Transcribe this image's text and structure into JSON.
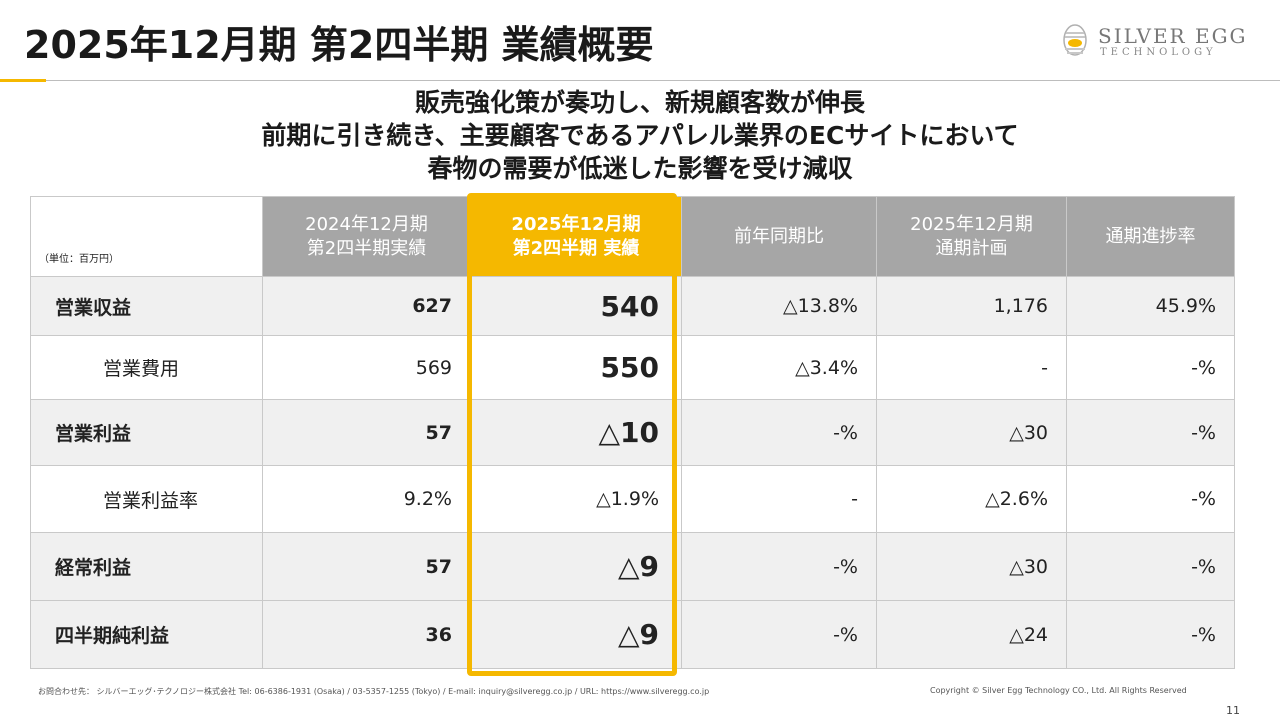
{
  "title": "2025年12月期 第2四半期 業績概要",
  "logo": {
    "main": "SILVER EGG",
    "sub": "TECHNOLOGY"
  },
  "headline": {
    "line1": "販売強化策が奏功し、新規顧客数が伸長",
    "line2": "前期に引き続き、主要顧客であるアパレル業界のECサイトにおいて",
    "line3": "春物の需要が低迷した影響を受け減収"
  },
  "table": {
    "unit": "（単位：百万円）",
    "headers": {
      "prev": [
        "2024年12月期",
        "第2四半期実績"
      ],
      "current": [
        "2025年12月期",
        "第2四半期 実績"
      ],
      "yoy": "前年同期比",
      "plan": [
        "2025年12月期",
        "通期計画"
      ],
      "progress": "通期進捗率"
    },
    "rows": [
      {
        "label": "営業収益",
        "prev": "627",
        "current": "540",
        "yoy": "△13.8%",
        "plan": "1,176",
        "progress": "45.9%"
      },
      {
        "label": "営業費用",
        "prev": "569",
        "current": "550",
        "yoy": "△3.4%",
        "plan": "-",
        "progress": "-%"
      },
      {
        "label": "営業利益",
        "prev": "57",
        "current": "△10",
        "yoy": "-%",
        "plan": "△30",
        "progress": "-%"
      },
      {
        "label": "営業利益率",
        "prev": "9.2%",
        "current": "△1.9%",
        "yoy": "-",
        "plan": "△2.6%",
        "progress": "-%"
      },
      {
        "label": "経常利益",
        "prev": "57",
        "current": "△9",
        "yoy": "-%",
        "plan": "△30",
        "progress": "-%"
      },
      {
        "label": "四半期純利益",
        "prev": "36",
        "current": "△9",
        "yoy": "-%",
        "plan": "△24",
        "progress": "-%"
      }
    ]
  },
  "footer": {
    "contact": "お問合わせ先： シルバーエッグ･テクノロジー株式会社 Tel: 06-6386-1931 (Osaka) / 03-5357-1255 (Tokyo) / E-mail: inquiry@silveregg.co.jp / URL: https://www.silveregg.co.jp",
    "copyright": "Copyright © Silver Egg Technology CO., Ltd. All Rights Reserved",
    "page": "11"
  },
  "colors": {
    "accent": "#f5b800",
    "header_gray": "#a6a6a6",
    "row_shade": "#f0f0f0"
  }
}
